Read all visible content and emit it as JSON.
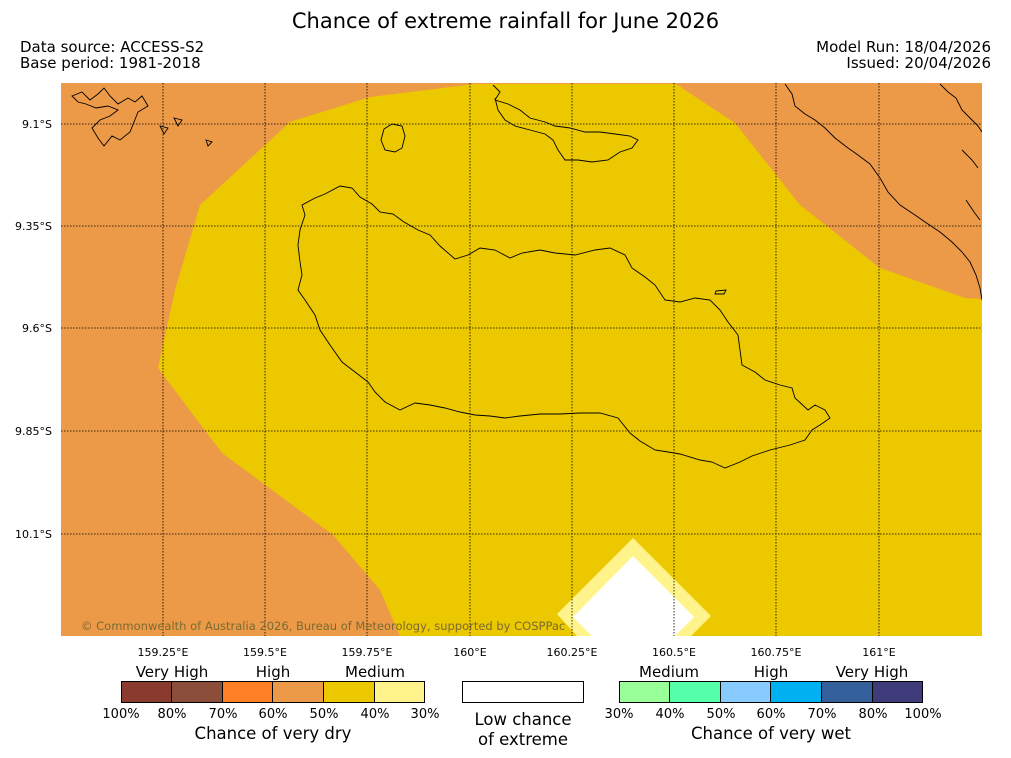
{
  "title": "Chance of extreme rainfall for June 2026",
  "meta": {
    "data_source": "Data source: ACCESS-S2",
    "base_period": "Base period: 1981-2018",
    "model_run": "Model Run: 18/04/2026",
    "issued": "Issued: 20/04/2026"
  },
  "map": {
    "lat_labels": [
      "9.1°S",
      "9.35°S",
      "9.6°S",
      "9.85°S",
      "10.1°S"
    ],
    "lon_labels": [
      "159.25°E",
      "159.5°E",
      "159.75°E",
      "160°E",
      "160.25°E",
      "160.5°E",
      "160.75°E",
      "161°E"
    ],
    "copyright": "© Commonwealth of Australia 2026, Bureau of Meteorology, supported by COSPPac",
    "fill_colors": {
      "orange": "#ec9a48",
      "yellow": "#ecc800",
      "pale": "#fff48c",
      "white": "#ffffff"
    }
  },
  "legend": {
    "dry": {
      "categories": [
        "Very High",
        "High",
        "Medium"
      ],
      "colors": [
        "#8b3a30",
        "#8a4e3a",
        "#ff7f27",
        "#ec9a48",
        "#ecc800",
        "#fff48c"
      ],
      "ticks": [
        "100%",
        "80%",
        "70%",
        "60%",
        "50%",
        "40%",
        "30%"
      ],
      "title": "Chance of very dry"
    },
    "low": {
      "line1": "Low chance",
      "line2": "of extreme"
    },
    "wet": {
      "categories": [
        "Medium",
        "High",
        "Very High"
      ],
      "colors": [
        "#99ff99",
        "#55ffaa",
        "#88ccff",
        "#00b0f0",
        "#335f9a",
        "#3f3a7a"
      ],
      "ticks": [
        "30%",
        "40%",
        "50%",
        "60%",
        "70%",
        "80%",
        "100%"
      ],
      "title": "Chance of very wet"
    }
  }
}
